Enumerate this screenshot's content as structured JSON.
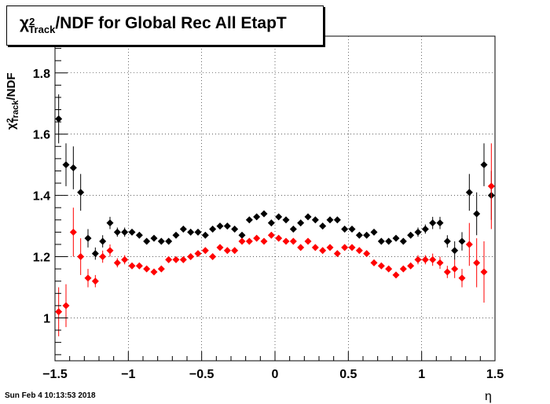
{
  "chart_data": {
    "type": "scatter",
    "title_symbol": "χ",
    "title_sup": "2",
    "title_sub": "Track",
    "title_rest": "/NDF for Global Rec All EtapT",
    "ylabel_symbol": "χ",
    "ylabel_sup": "2",
    "ylabel_sub": "Track",
    "ylabel_rest": "/NDF",
    "xlabel": "η",
    "xlim": [
      -1.5,
      1.5
    ],
    "ylim": [
      0.86,
      1.92
    ],
    "x_ticks": [
      "−1.5",
      "−1",
      "−0.5",
      "0",
      "0.5",
      "1",
      "1.5"
    ],
    "x_tick_values": [
      -1.5,
      -1,
      -0.5,
      0,
      0.5,
      1,
      1.5
    ],
    "y_ticks": [
      "1",
      "1.2",
      "1.4",
      "1.6",
      "1.8"
    ],
    "y_tick_values": [
      1.0,
      1.2,
      1.4,
      1.6,
      1.8
    ],
    "grid": true,
    "series": [
      {
        "color": "#000000",
        "x": [
          -1.475,
          -1.425,
          -1.375,
          -1.325,
          -1.275,
          -1.225,
          -1.175,
          -1.125,
          -1.075,
          -1.025,
          -0.975,
          -0.925,
          -0.875,
          -0.825,
          -0.775,
          -0.725,
          -0.675,
          -0.625,
          -0.575,
          -0.525,
          -0.475,
          -0.425,
          -0.375,
          -0.325,
          -0.275,
          -0.225,
          -0.175,
          -0.125,
          -0.075,
          -0.025,
          0.025,
          0.075,
          0.125,
          0.175,
          0.225,
          0.275,
          0.325,
          0.375,
          0.425,
          0.475,
          0.525,
          0.575,
          0.625,
          0.675,
          0.725,
          0.775,
          0.825,
          0.875,
          0.925,
          0.975,
          1.025,
          1.075,
          1.125,
          1.175,
          1.225,
          1.275,
          1.325,
          1.375,
          1.425,
          1.475
        ],
        "y": [
          1.65,
          1.5,
          1.49,
          1.41,
          1.26,
          1.21,
          1.25,
          1.31,
          1.28,
          1.28,
          1.28,
          1.27,
          1.25,
          1.26,
          1.25,
          1.25,
          1.27,
          1.29,
          1.28,
          1.28,
          1.27,
          1.29,
          1.3,
          1.3,
          1.29,
          1.27,
          1.32,
          1.33,
          1.34,
          1.31,
          1.33,
          1.32,
          1.29,
          1.31,
          1.33,
          1.32,
          1.3,
          1.32,
          1.32,
          1.29,
          1.29,
          1.27,
          1.27,
          1.28,
          1.25,
          1.25,
          1.26,
          1.25,
          1.27,
          1.28,
          1.29,
          1.31,
          1.31,
          1.25,
          1.22,
          1.25,
          1.41,
          1.34,
          1.5,
          1.4
        ],
        "err": [
          0.08,
          0.07,
          0.07,
          0.06,
          0.03,
          0.02,
          0.02,
          0.02,
          0.015,
          0.015,
          0.01,
          0.01,
          0.01,
          0.01,
          0.01,
          0.01,
          0.01,
          0.01,
          0.01,
          0.01,
          0.01,
          0.01,
          0.01,
          0.01,
          0.01,
          0.01,
          0.01,
          0.01,
          0.01,
          0.01,
          0.01,
          0.01,
          0.01,
          0.01,
          0.01,
          0.01,
          0.01,
          0.01,
          0.01,
          0.01,
          0.01,
          0.01,
          0.01,
          0.01,
          0.01,
          0.01,
          0.01,
          0.01,
          0.01,
          0.015,
          0.015,
          0.02,
          0.02,
          0.02,
          0.03,
          0.03,
          0.06,
          0.07,
          0.07,
          0.08
        ]
      },
      {
        "color": "#ff0000",
        "x": [
          -1.475,
          -1.425,
          -1.375,
          -1.325,
          -1.275,
          -1.225,
          -1.175,
          -1.125,
          -1.075,
          -1.025,
          -0.975,
          -0.925,
          -0.875,
          -0.825,
          -0.775,
          -0.725,
          -0.675,
          -0.625,
          -0.575,
          -0.525,
          -0.475,
          -0.425,
          -0.375,
          -0.325,
          -0.275,
          -0.225,
          -0.175,
          -0.125,
          -0.075,
          -0.025,
          0.025,
          0.075,
          0.125,
          0.175,
          0.225,
          0.275,
          0.325,
          0.375,
          0.425,
          0.475,
          0.525,
          0.575,
          0.625,
          0.675,
          0.725,
          0.775,
          0.825,
          0.875,
          0.925,
          0.975,
          1.025,
          1.075,
          1.125,
          1.175,
          1.225,
          1.275,
          1.325,
          1.375,
          1.425,
          1.475
        ],
        "y": [
          1.02,
          1.04,
          1.28,
          1.2,
          1.13,
          1.12,
          1.2,
          1.22,
          1.18,
          1.19,
          1.17,
          1.17,
          1.16,
          1.15,
          1.16,
          1.19,
          1.19,
          1.19,
          1.2,
          1.21,
          1.22,
          1.2,
          1.23,
          1.22,
          1.22,
          1.25,
          1.25,
          1.26,
          1.25,
          1.27,
          1.26,
          1.25,
          1.25,
          1.23,
          1.25,
          1.23,
          1.22,
          1.23,
          1.21,
          1.23,
          1.23,
          1.22,
          1.21,
          1.18,
          1.17,
          1.16,
          1.14,
          1.16,
          1.17,
          1.19,
          1.19,
          1.19,
          1.18,
          1.15,
          1.16,
          1.13,
          1.24,
          1.18,
          1.15,
          1.43
        ],
        "err": [
          0.08,
          0.07,
          0.08,
          0.06,
          0.03,
          0.02,
          0.02,
          0.02,
          0.015,
          0.015,
          0.01,
          0.01,
          0.01,
          0.01,
          0.01,
          0.01,
          0.01,
          0.01,
          0.01,
          0.01,
          0.01,
          0.01,
          0.01,
          0.01,
          0.01,
          0.01,
          0.01,
          0.01,
          0.01,
          0.01,
          0.01,
          0.01,
          0.01,
          0.01,
          0.01,
          0.01,
          0.01,
          0.01,
          0.01,
          0.01,
          0.01,
          0.01,
          0.01,
          0.01,
          0.01,
          0.01,
          0.01,
          0.01,
          0.01,
          0.015,
          0.015,
          0.02,
          0.02,
          0.02,
          0.03,
          0.03,
          0.07,
          0.08,
          0.1,
          0.14
        ]
      }
    ]
  },
  "footer": {
    "timestamp": "Sun Feb  4 10:13:53 2018"
  }
}
